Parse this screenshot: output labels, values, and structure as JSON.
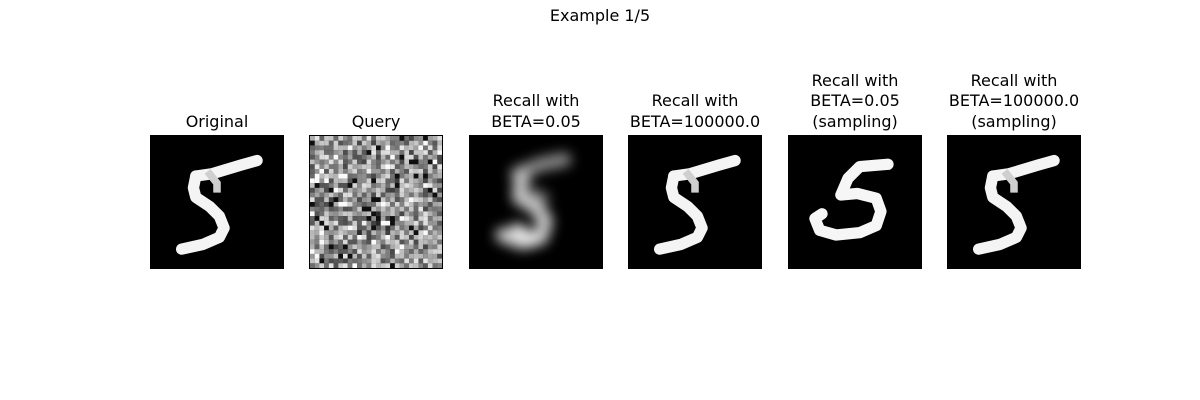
{
  "figure": {
    "suptitle": "Example 1/5",
    "panels": [
      {
        "id": "original",
        "title_lines": [
          "Original"
        ]
      },
      {
        "id": "query",
        "title_lines": [
          "Query"
        ]
      },
      {
        "id": "recall-beta-0-05",
        "title_lines": [
          "Recall with",
          "BETA=0.05"
        ]
      },
      {
        "id": "recall-beta-100000",
        "title_lines": [
          "Recall with",
          "BETA=100000.0"
        ]
      },
      {
        "id": "recall-beta-0-05-sampling",
        "title_lines": [
          "Recall with",
          "BETA=0.05",
          "(sampling)"
        ]
      },
      {
        "id": "recall-beta-100000-sampling",
        "title_lines": [
          "Recall with",
          "BETA=100000.0",
          "(sampling)"
        ]
      }
    ]
  }
}
